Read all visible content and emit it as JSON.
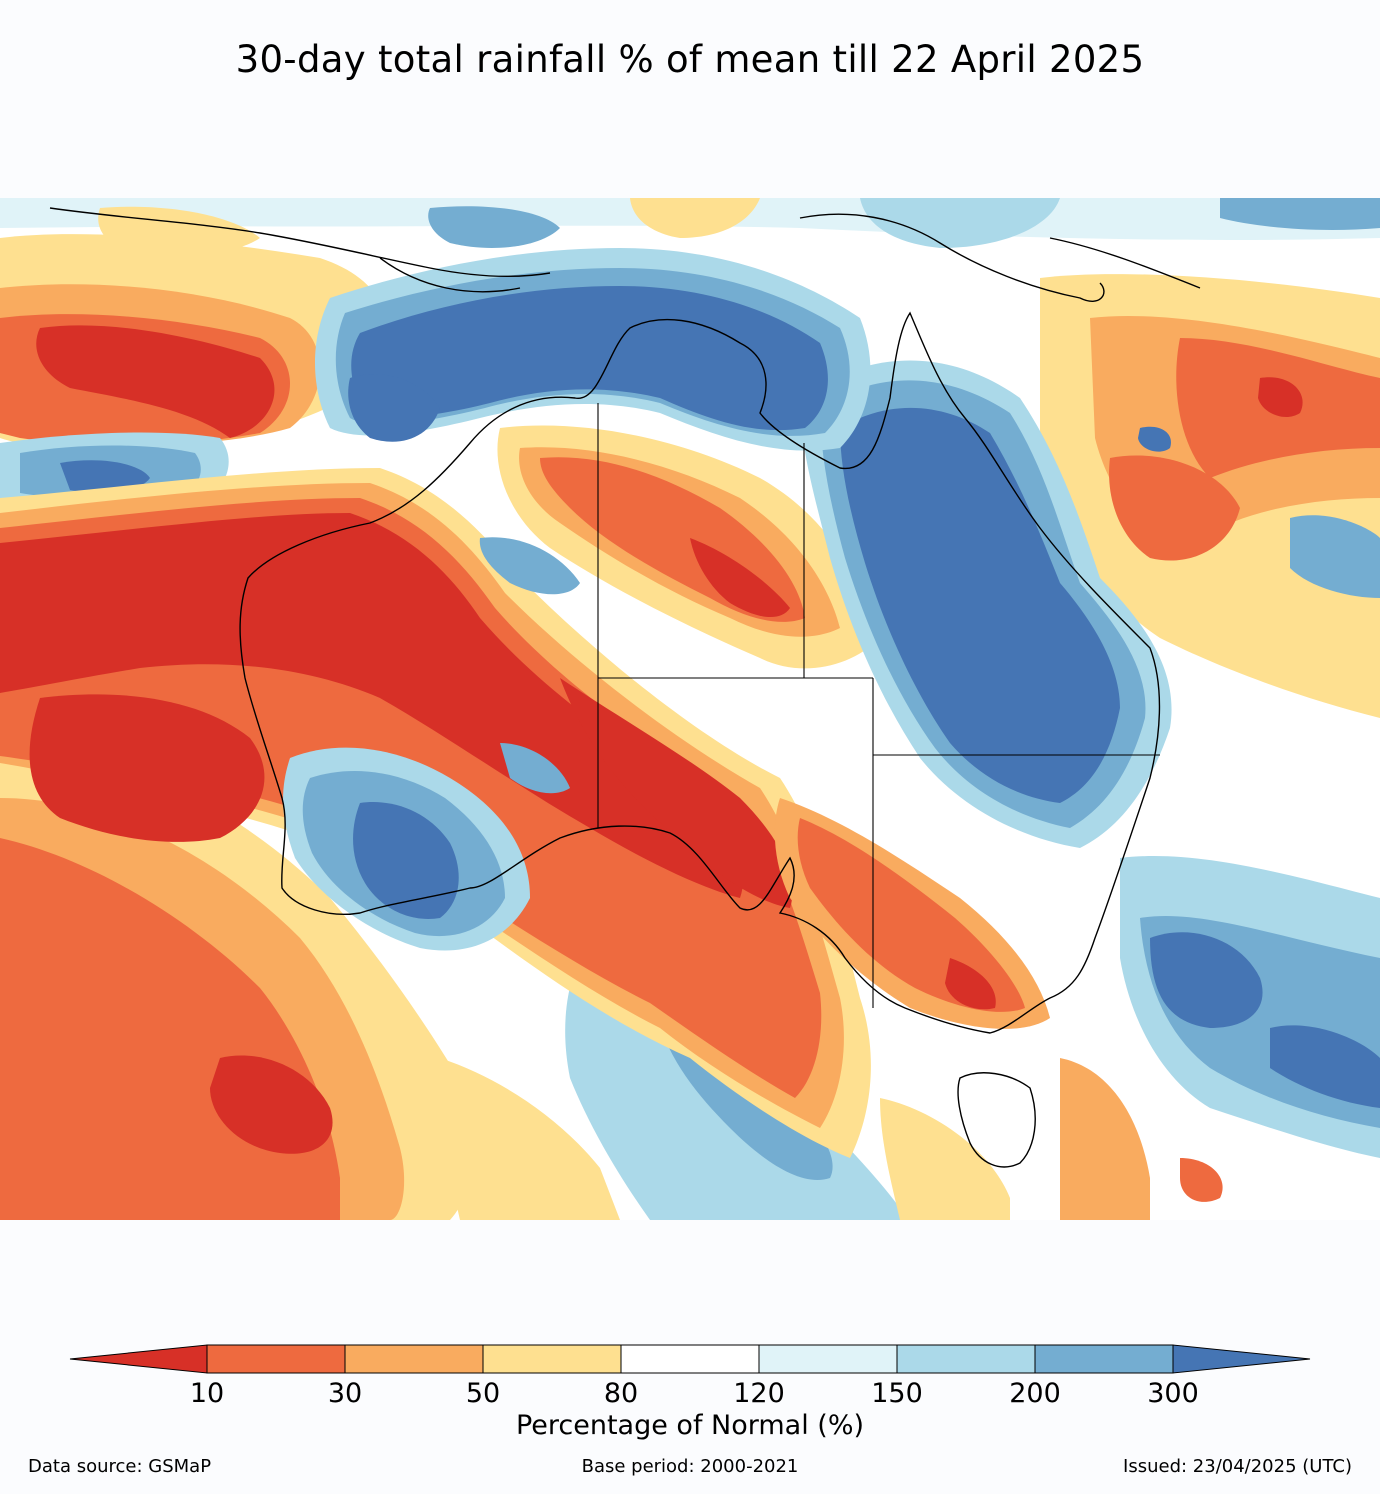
{
  "title": "30-day total rainfall % of mean till 22 April 2025",
  "colors": {
    "lt10": "#d73027",
    "c10_30": "#ee6a3f",
    "c30_50": "#f9ab5f",
    "c50_80": "#fee090",
    "c80_120": "#ffffff",
    "c120_150": "#e0f3f8",
    "c150_200": "#abd9e9",
    "c200_300": "#74add1",
    "gt300": "#4575b4"
  },
  "legend": {
    "ticks": [
      "10",
      "30",
      "50",
      "80",
      "120",
      "150",
      "200",
      "300"
    ],
    "label": "Percentage of Normal (%)"
  },
  "footer": {
    "source": "Data source: GSMaP",
    "base_period": "Base period: 2000-2021",
    "issued": "Issued: 23/04/2025 (UTC)"
  }
}
